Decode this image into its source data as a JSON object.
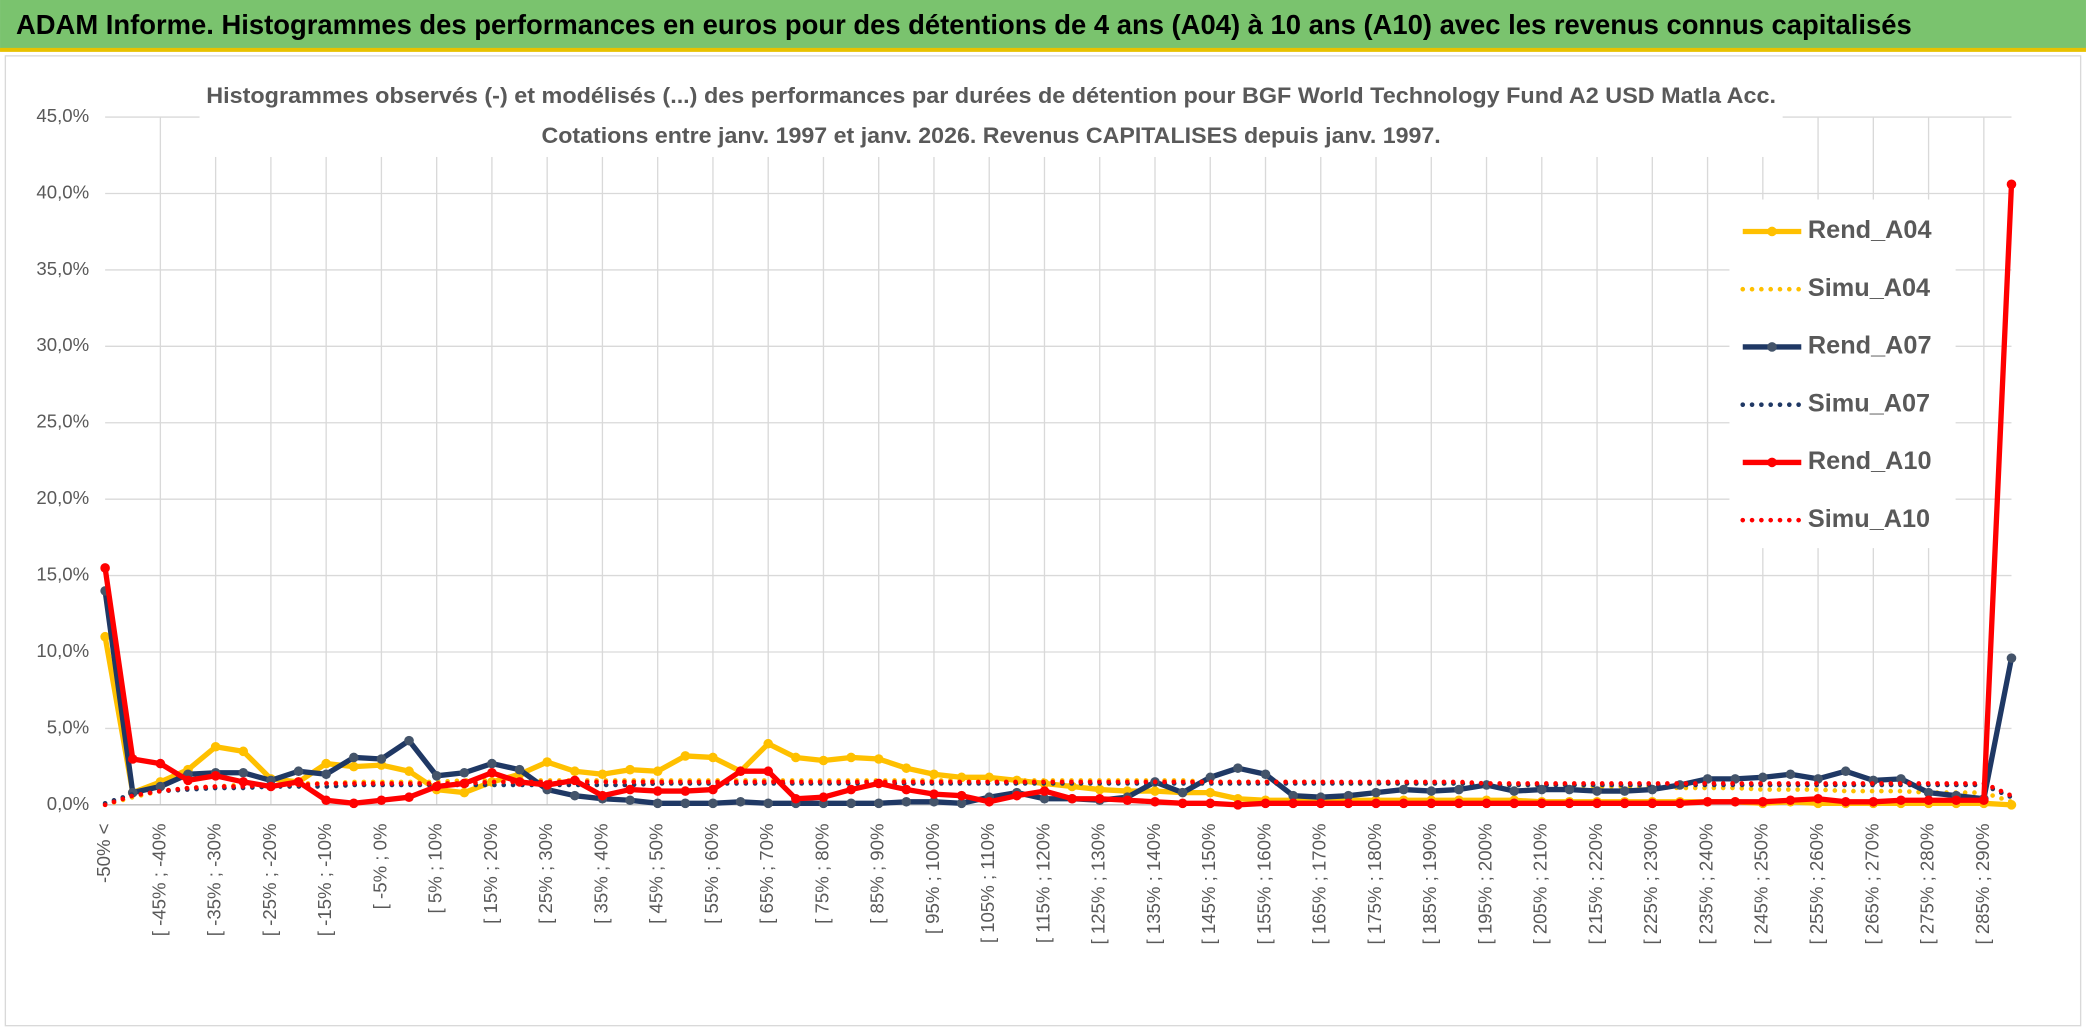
{
  "chart_data": {
    "type": "line",
    "header": "ADAM Informe. Histogrammes des performances en euros pour des détentions de 4 ans (A04) à 10 ans (A10) avec les revenus connus capitalisés",
    "title": "Histogrammes observés (-) et modélisés (...) des performances par durées de détention pour BGF World Technology Fund A2 USD Matla Acc.",
    "subtitle": "Cotations entre janv. 1997 et janv. 2026. Revenus CAPITALISES depuis janv. 1997.",
    "categories": [
      "-50% <",
      null,
      "[ -45% ; -40%",
      null,
      "[ -35% ; -30%",
      null,
      "[ -25% ; -20%",
      null,
      "[ -15% ; -10%",
      null,
      "[ -5% ; 0%",
      null,
      "[ 5% ; 10%",
      null,
      "[ 15% ; 20%",
      null,
      "[ 25% ; 30%",
      null,
      "[ 35% ; 40%",
      null,
      "[ 45% ; 50%",
      null,
      "[ 55% ; 60%",
      null,
      "[ 65% ; 70%",
      null,
      "[ 75% ; 80%",
      null,
      "[ 85% ; 90%",
      null,
      "[ 95% ; 100%",
      null,
      "[ 105% ; 110%",
      null,
      "[ 115% ; 120%",
      null,
      "[ 125% ; 130%",
      null,
      "[ 135% ; 140%",
      null,
      "[ 145% ; 150%",
      null,
      "[ 155% ; 160%",
      null,
      "[ 165% ; 170%",
      null,
      "[ 175% ; 180%",
      null,
      "[ 185% ; 190%",
      null,
      "[ 195% ; 200%",
      null,
      "[ 205% ; 210%",
      null,
      "[ 215% ; 220%",
      null,
      "[ 225% ; 230%",
      null,
      "[ 235% ; 240%",
      null,
      "[ 245% ; 250%",
      null,
      "[ 255% ; 260%",
      null,
      "[ 265% ; 270%",
      null,
      "[ 275% ; 280%",
      null,
      "[ 285% ; 290%",
      null
    ],
    "ylim": [
      0,
      45
    ],
    "yticks": [
      {
        "value": 0,
        "label": "0,0%"
      },
      {
        "value": 5,
        "label": "5,0%"
      },
      {
        "value": 10,
        "label": "10,0%"
      },
      {
        "value": 15,
        "label": "15,0%"
      },
      {
        "value": 20,
        "label": "20,0%"
      },
      {
        "value": 25,
        "label": "25,0%"
      },
      {
        "value": 30,
        "label": "30,0%"
      },
      {
        "value": 35,
        "label": "35,0%"
      },
      {
        "value": 40,
        "label": "40,0%"
      },
      {
        "value": 45,
        "label": "45,0%"
      }
    ],
    "grid": true,
    "legend": "right",
    "series": [
      {
        "name": "Rend_A04",
        "color": "#ffc000",
        "style": "solid",
        "markers": true,
        "values": [
          11.0,
          0.8,
          1.5,
          2.3,
          3.8,
          3.5,
          1.7,
          1.5,
          2.7,
          2.5,
          2.6,
          2.2,
          1.0,
          0.8,
          1.5,
          2.0,
          2.8,
          2.2,
          2.0,
          2.3,
          2.2,
          3.2,
          3.1,
          2.2,
          4.0,
          3.1,
          2.9,
          3.1,
          3.0,
          2.4,
          2.0,
          1.8,
          1.8,
          1.6,
          1.4,
          1.2,
          1.0,
          0.9,
          0.9,
          0.8,
          0.8,
          0.4,
          0.3,
          0.3,
          0.3,
          0.3,
          0.3,
          0.3,
          0.3,
          0.3,
          0.3,
          0.3,
          0.2,
          0.2,
          0.2,
          0.2,
          0.2,
          0.2,
          0.2,
          0.2,
          0.1,
          0.2,
          0.1,
          0.1,
          0.1,
          0.1,
          0.1,
          0.1,
          0.1,
          0.0
        ]
      },
      {
        "name": "Simu_A04",
        "color": "#ffc000",
        "style": "dotted",
        "markers": false,
        "values": [
          0.0,
          0.5,
          0.9,
          1.1,
          1.2,
          1.3,
          1.3,
          1.4,
          1.4,
          1.5,
          1.5,
          1.5,
          1.5,
          1.6,
          1.6,
          1.6,
          1.6,
          1.6,
          1.6,
          1.6,
          1.6,
          1.6,
          1.6,
          1.6,
          1.6,
          1.6,
          1.6,
          1.6,
          1.6,
          1.6,
          1.6,
          1.6,
          1.6,
          1.6,
          1.6,
          1.6,
          1.6,
          1.6,
          1.6,
          1.6,
          1.5,
          1.5,
          1.5,
          1.5,
          1.5,
          1.4,
          1.4,
          1.4,
          1.4,
          1.4,
          1.3,
          1.3,
          1.3,
          1.3,
          1.2,
          1.2,
          1.2,
          1.1,
          1.1,
          1.1,
          1.0,
          1.0,
          1.0,
          0.9,
          0.9,
          0.9,
          0.8,
          0.8,
          0.8,
          0.2
        ]
      },
      {
        "name": "Rend_A07",
        "color": "#1f3864",
        "style": "solid",
        "markers": true,
        "values": [
          14.0,
          0.8,
          1.2,
          2.0,
          2.1,
          2.1,
          1.6,
          2.2,
          2.0,
          3.1,
          3.0,
          4.2,
          1.9,
          2.1,
          2.7,
          2.3,
          1.0,
          0.6,
          0.4,
          0.3,
          0.1,
          0.1,
          0.1,
          0.2,
          0.1,
          0.1,
          0.1,
          0.1,
          0.1,
          0.2,
          0.2,
          0.1,
          0.5,
          0.8,
          0.4,
          0.4,
          0.3,
          0.5,
          1.5,
          0.8,
          1.8,
          2.4,
          2.0,
          0.6,
          0.5,
          0.6,
          0.8,
          1.0,
          0.9,
          1.0,
          1.3,
          0.9,
          1.0,
          1.0,
          0.9,
          0.9,
          1.0,
          1.3,
          1.7,
          1.7,
          1.8,
          2.0,
          1.7,
          2.2,
          1.6,
          1.7,
          0.8,
          0.6,
          0.4,
          9.6
        ]
      },
      {
        "name": "Simu_A07",
        "color": "#1f3864",
        "style": "dotted",
        "markers": false,
        "values": [
          0.1,
          0.7,
          0.9,
          1.0,
          1.1,
          1.1,
          1.2,
          1.2,
          1.2,
          1.3,
          1.3,
          1.3,
          1.3,
          1.3,
          1.3,
          1.3,
          1.3,
          1.3,
          1.3,
          1.3,
          1.4,
          1.4,
          1.4,
          1.4,
          1.4,
          1.4,
          1.4,
          1.4,
          1.4,
          1.4,
          1.4,
          1.4,
          1.4,
          1.4,
          1.4,
          1.4,
          1.4,
          1.4,
          1.4,
          1.4,
          1.4,
          1.4,
          1.4,
          1.4,
          1.4,
          1.4,
          1.4,
          1.4,
          1.4,
          1.4,
          1.3,
          1.3,
          1.3,
          1.3,
          1.3,
          1.3,
          1.3,
          1.3,
          1.3,
          1.3,
          1.3,
          1.3,
          1.3,
          1.3,
          1.3,
          1.3,
          1.3,
          1.3,
          1.3,
          0.5
        ]
      },
      {
        "name": "Rend_A10",
        "color": "#ff0000",
        "style": "solid",
        "markers": true,
        "values": [
          15.5,
          3.0,
          2.7,
          1.6,
          1.9,
          1.5,
          1.2,
          1.5,
          0.3,
          0.1,
          0.3,
          0.5,
          1.2,
          1.4,
          2.1,
          1.5,
          1.3,
          1.6,
          0.6,
          1.0,
          0.9,
          0.9,
          1.0,
          2.2,
          2.2,
          0.4,
          0.5,
          1.0,
          1.4,
          1.0,
          0.7,
          0.6,
          0.2,
          0.6,
          0.9,
          0.4,
          0.4,
          0.3,
          0.2,
          0.1,
          0.1,
          0.0,
          0.1,
          0.1,
          0.1,
          0.1,
          0.1,
          0.1,
          0.1,
          0.1,
          0.1,
          0.1,
          0.1,
          0.1,
          0.1,
          0.1,
          0.1,
          0.1,
          0.2,
          0.2,
          0.2,
          0.3,
          0.4,
          0.2,
          0.2,
          0.3,
          0.3,
          0.3,
          0.3,
          40.6
        ]
      },
      {
        "name": "Simu_A10",
        "color": "#ff0000",
        "style": "dotted",
        "markers": false,
        "values": [
          0.0,
          0.6,
          0.9,
          1.1,
          1.2,
          1.2,
          1.3,
          1.3,
          1.4,
          1.4,
          1.4,
          1.4,
          1.4,
          1.4,
          1.5,
          1.5,
          1.5,
          1.5,
          1.5,
          1.5,
          1.5,
          1.5,
          1.5,
          1.5,
          1.5,
          1.5,
          1.5,
          1.5,
          1.5,
          1.5,
          1.5,
          1.5,
          1.5,
          1.5,
          1.5,
          1.5,
          1.5,
          1.5,
          1.5,
          1.5,
          1.5,
          1.5,
          1.5,
          1.5,
          1.5,
          1.5,
          1.5,
          1.5,
          1.5,
          1.5,
          1.4,
          1.4,
          1.4,
          1.4,
          1.4,
          1.4,
          1.4,
          1.4,
          1.4,
          1.4,
          1.4,
          1.4,
          1.4,
          1.4,
          1.4,
          1.4,
          1.4,
          1.4,
          1.4,
          0.6
        ]
      }
    ]
  }
}
